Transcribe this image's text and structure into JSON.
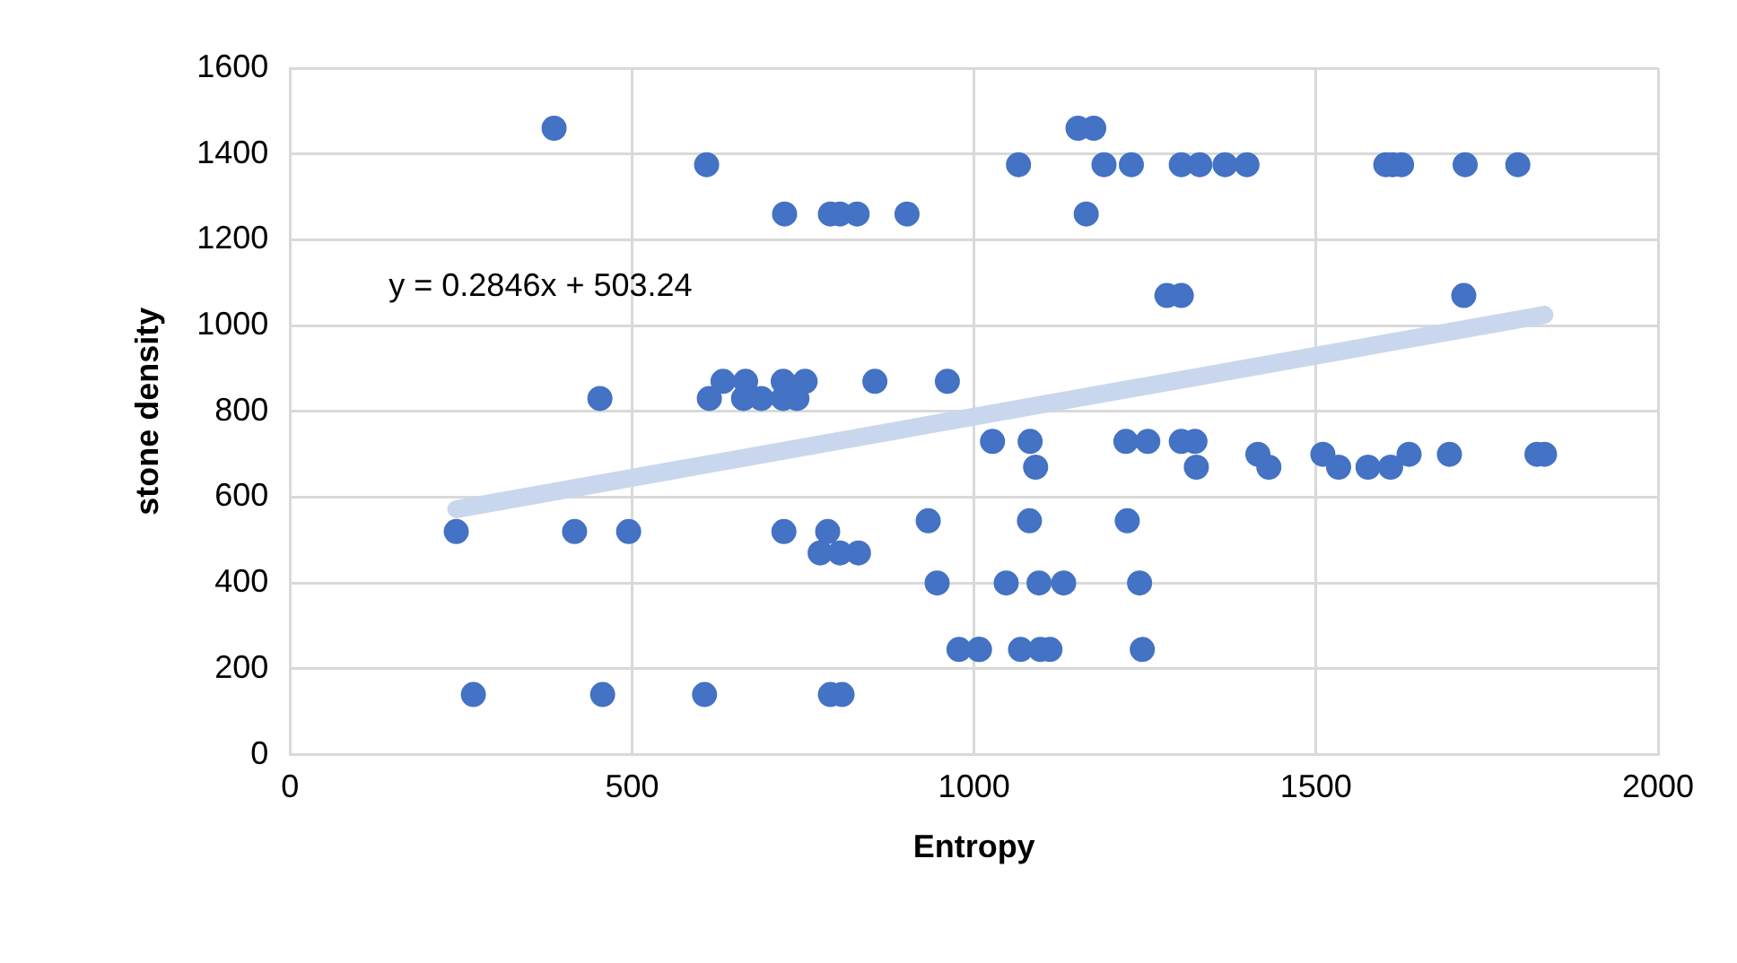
{
  "chart_data": {
    "type": "scatter",
    "xlabel": "Entropy",
    "ylabel": "stone density",
    "annotations": [
      "y = 0.2846x + 503.24"
    ],
    "xlim": [
      0,
      2000
    ],
    "xticks": [
      0,
      500,
      1000,
      1500,
      2000
    ],
    "ylim": [
      0,
      1600
    ],
    "yticks": [
      0,
      200,
      400,
      600,
      800,
      1000,
      1200,
      1400,
      1600
    ],
    "grid": true,
    "legend": false,
    "series": [
      {
        "type": "scatter",
        "color": "#4472c4",
        "marker": "circle",
        "x": [
          386,
          1152,
          1175,
          609,
          1065,
          1190,
          1230,
          1303,
          1330,
          1367,
          1399,
          1602,
          1612,
          1625,
          1718,
          1795,
          723,
          790,
          804,
          829,
          902,
          1164,
          1282,
          1303,
          1716,
          633,
          666,
          721,
          753,
          855,
          961,
          453,
          613,
          663,
          689,
          721,
          741,
          1027,
          1082,
          1222,
          1254,
          1303,
          1323,
          1415,
          1510,
          1636,
          1695,
          1823,
          1834,
          1090,
          1325,
          1431,
          1533,
          1576,
          1609,
          933,
          1081,
          1224,
          243,
          416,
          495,
          722,
          786,
          775,
          804,
          831,
          946,
          1047,
          1095,
          1131,
          1242,
          978,
          1007,
          1008,
          1068,
          1097,
          1111,
          1246,
          268,
          457,
          606,
          790,
          807
        ],
        "values": [
          1460,
          1460,
          1460,
          1375,
          1375,
          1375,
          1375,
          1375,
          1375,
          1375,
          1375,
          1375,
          1375,
          1375,
          1375,
          1375,
          1260,
          1260,
          1260,
          1260,
          1260,
          1260,
          1070,
          1070,
          1070,
          870,
          870,
          870,
          870,
          870,
          870,
          830,
          830,
          830,
          830,
          830,
          830,
          730,
          730,
          730,
          730,
          730,
          730,
          700,
          700,
          700,
          700,
          700,
          700,
          670,
          670,
          670,
          670,
          670,
          670,
          545,
          545,
          545,
          520,
          520,
          520,
          520,
          520,
          470,
          470,
          470,
          400,
          400,
          400,
          400,
          400,
          245,
          245,
          245,
          245,
          245,
          245,
          245,
          140,
          140,
          140,
          140,
          140
        ]
      },
      {
        "type": "line",
        "color": "#c9d7ee",
        "marker": "none",
        "x": [
          243,
          1834
        ],
        "values": [
          572,
          1025
        ]
      }
    ]
  }
}
